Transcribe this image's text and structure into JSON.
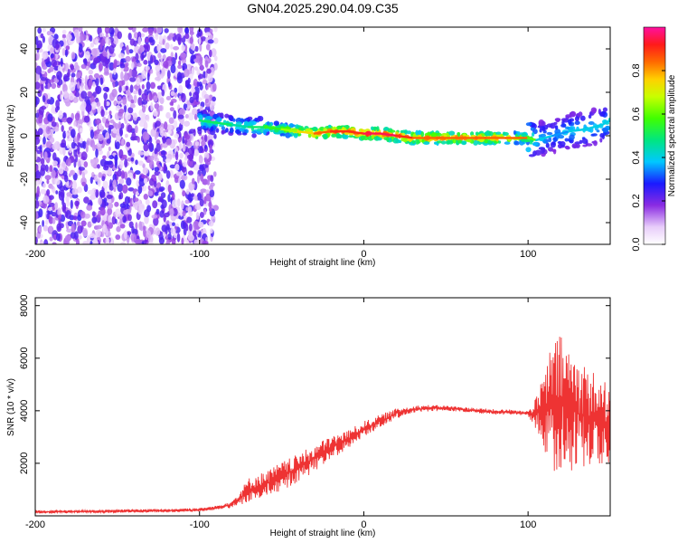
{
  "title": "GN04.2025.290.04.09.C35",
  "chart_data": [
    {
      "type": "heatmap",
      "name": "spectrogram",
      "xlabel": "Height of straight line (km)",
      "ylabel": "Frequency (Hz)",
      "xlim": [
        -200,
        150
      ],
      "ylim": [
        -50,
        50
      ],
      "xticks": [
        -200,
        -100,
        0,
        100
      ],
      "yticks": [
        -40,
        -20,
        0,
        20,
        40
      ],
      "noise_region_x": [
        -200,
        -90
      ],
      "signal_track": {
        "x": [
          -100,
          -80,
          -70,
          -60,
          -50,
          -40,
          -30,
          -20,
          -10,
          0,
          10,
          20,
          30,
          40,
          60,
          80,
          100,
          105,
          115,
          125,
          135,
          145,
          150
        ],
        "frequency": [
          7,
          5,
          4,
          4,
          3,
          2,
          1,
          2,
          2,
          1,
          1,
          0,
          -1,
          -1,
          -1,
          -1,
          -1,
          -2,
          0,
          2,
          3,
          5,
          7
        ],
        "amplitude": [
          0.5,
          0.45,
          0.5,
          0.55,
          0.65,
          0.75,
          0.85,
          0.9,
          0.9,
          0.95,
          0.95,
          0.9,
          0.85,
          0.85,
          0.85,
          0.85,
          0.6,
          0.4,
          0.35,
          0.4,
          0.4,
          0.4,
          0.45
        ]
      },
      "colorbar": {
        "label": "Normalized spectral amplitude",
        "ticks": [
          0.0,
          0.2,
          0.4,
          0.6,
          0.8
        ],
        "tick_labels": [
          "0.0",
          "0.2",
          "0.4",
          "0.6",
          "0.8"
        ],
        "range": [
          0,
          1
        ]
      }
    },
    {
      "type": "line",
      "name": "snr",
      "xlabel": "Height of straight line (km)",
      "ylabel": "SNR (10 * v/v)",
      "xlim": [
        -200,
        150
      ],
      "ylim": [
        0,
        8300
      ],
      "xticks": [
        -200,
        -100,
        0,
        100
      ],
      "yticks": [
        2000,
        4000,
        6000,
        8000
      ],
      "series": [
        {
          "name": "SNR",
          "color": "#ee3333",
          "x": [
            -200,
            -160,
            -120,
            -100,
            -90,
            -80,
            -75,
            -70,
            -60,
            -50,
            -40,
            -30,
            -20,
            -10,
            0,
            10,
            20,
            30,
            40,
            50,
            60,
            70,
            80,
            90,
            100,
            105,
            110,
            115,
            120,
            125,
            130,
            135,
            140,
            145,
            150
          ],
          "y": [
            150,
            170,
            200,
            230,
            300,
            450,
            700,
            1000,
            1200,
            1500,
            1800,
            2200,
            2600,
            2900,
            3300,
            3600,
            3900,
            4050,
            4100,
            4100,
            4050,
            4000,
            3950,
            3950,
            3900,
            3900,
            4000,
            4200,
            4200,
            4100,
            3900,
            3800,
            3700,
            3600,
            3500
          ],
          "noise_amplitude": [
            60,
            60,
            70,
            70,
            80,
            150,
            300,
            450,
            500,
            550,
            550,
            500,
            450,
            350,
            300,
            250,
            200,
            150,
            120,
            100,
            100,
            100,
            100,
            100,
            100,
            600,
            1600,
            2500,
            2700,
            2500,
            2200,
            2000,
            1800,
            1600,
            1500
          ]
        }
      ]
    }
  ]
}
